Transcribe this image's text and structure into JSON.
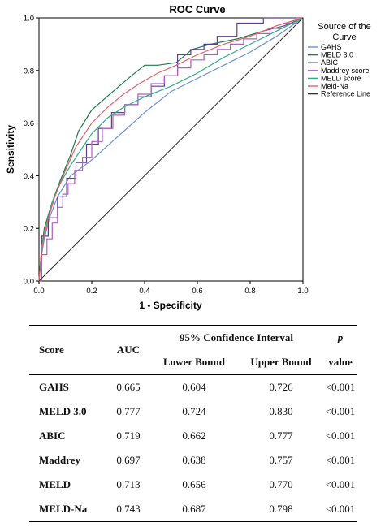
{
  "chart_data": {
    "type": "line",
    "title": "ROC Curve",
    "xlabel": "1 - Specificity",
    "ylabel": "Sensitivity",
    "xlim": [
      0,
      1
    ],
    "ylim": [
      0,
      1
    ],
    "xticks": [
      "0.0",
      "0.2",
      "0.4",
      "0.6",
      "0.8",
      "1.0"
    ],
    "yticks": [
      "0.0",
      "0.2",
      "0.4",
      "0.6",
      "0.8",
      "1.0"
    ],
    "legend": {
      "title_lines": [
        "Source of the",
        "Curve"
      ],
      "position": "right"
    },
    "series": [
      {
        "name": "GAHS",
        "color": "#6b8ed6",
        "x": [
          0,
          0.01,
          0.02,
          0.04,
          0.07,
          0.12,
          0.2,
          0.3,
          0.4,
          0.5,
          0.6,
          0.7,
          0.8,
          0.9,
          1.0
        ],
        "y": [
          0,
          0.1,
          0.16,
          0.24,
          0.32,
          0.4,
          0.46,
          0.55,
          0.64,
          0.72,
          0.77,
          0.82,
          0.87,
          0.93,
          1.0
        ]
      },
      {
        "name": "MELD 3.0",
        "color": "#1f7a4a",
        "x": [
          0,
          0.01,
          0.02,
          0.05,
          0.08,
          0.12,
          0.15,
          0.2,
          0.28,
          0.35,
          0.4,
          0.45,
          0.52,
          0.58,
          0.65,
          0.75,
          0.85,
          0.93,
          1.0
        ],
        "y": [
          0,
          0.12,
          0.2,
          0.3,
          0.38,
          0.48,
          0.57,
          0.65,
          0.72,
          0.78,
          0.82,
          0.82,
          0.83,
          0.88,
          0.9,
          0.92,
          0.95,
          0.97,
          1.0
        ]
      },
      {
        "name": "ABIC",
        "color": "#5a3f8f",
        "x": [
          0,
          0.02,
          0.05,
          0.09,
          0.12,
          0.16,
          0.2,
          0.25,
          0.3,
          0.35,
          0.4,
          0.45,
          0.5,
          0.55,
          0.6,
          0.65,
          0.7,
          0.8,
          0.9,
          1.0
        ],
        "y": [
          0,
          0.17,
          0.24,
          0.32,
          0.39,
          0.45,
          0.52,
          0.58,
          0.64,
          0.67,
          0.7,
          0.74,
          0.78,
          0.86,
          0.88,
          0.9,
          0.93,
          0.98,
          1.0,
          1.0
        ]
      },
      {
        "name": "Maddrey score",
        "color": "#b45cc7",
        "x": [
          0,
          0.02,
          0.04,
          0.06,
          0.08,
          0.1,
          0.12,
          0.15,
          0.18,
          0.22,
          0.26,
          0.3,
          0.35,
          0.4,
          0.45,
          0.5,
          0.55,
          0.6,
          0.65,
          0.7,
          0.75,
          0.8,
          0.85,
          0.9,
          0.95,
          1.0
        ],
        "y": [
          0,
          0.1,
          0.16,
          0.22,
          0.28,
          0.33,
          0.37,
          0.42,
          0.47,
          0.53,
          0.58,
          0.63,
          0.67,
          0.71,
          0.75,
          0.78,
          0.81,
          0.84,
          0.86,
          0.88,
          0.9,
          0.92,
          0.94,
          0.96,
          0.98,
          1.0
        ]
      },
      {
        "name": "MELD score",
        "color": "#2fae83",
        "x": [
          0,
          0.01,
          0.03,
          0.05,
          0.08,
          0.12,
          0.16,
          0.2,
          0.26,
          0.32,
          0.4,
          0.5,
          0.6,
          0.7,
          0.8,
          0.9,
          1.0
        ],
        "y": [
          0,
          0.13,
          0.22,
          0.3,
          0.37,
          0.44,
          0.5,
          0.56,
          0.62,
          0.66,
          0.7,
          0.74,
          0.79,
          0.85,
          0.9,
          0.95,
          1.0
        ]
      },
      {
        "name": "Meld-Na",
        "color": "#e0606a",
        "x": [
          0,
          0.01,
          0.03,
          0.06,
          0.1,
          0.14,
          0.2,
          0.26,
          0.32,
          0.38,
          0.45,
          0.52,
          0.6,
          0.7,
          0.8,
          0.9,
          1.0
        ],
        "y": [
          0,
          0.12,
          0.22,
          0.32,
          0.42,
          0.51,
          0.6,
          0.66,
          0.71,
          0.75,
          0.79,
          0.82,
          0.86,
          0.9,
          0.93,
          0.97,
          1.0
        ]
      },
      {
        "name": "Reference Line",
        "color": "#333333",
        "x": [
          0,
          1
        ],
        "y": [
          0,
          1
        ]
      }
    ]
  },
  "table": {
    "headers": {
      "score": "Score",
      "auc": "AUC",
      "ci": "95% Confidence Interval",
      "lower": "Lower Bound",
      "upper": "Upper Bound",
      "p_symbol": "p",
      "p_value": "value"
    },
    "rows": [
      {
        "score": "GAHS",
        "auc": "0.665",
        "lower": "0.604",
        "upper": "0.726",
        "p": "<0.001"
      },
      {
        "score": "MELD 3.0",
        "auc": "0.777",
        "lower": "0.724",
        "upper": "0.830",
        "p": "<0.001"
      },
      {
        "score": "ABIC",
        "auc": "0.719",
        "lower": "0.662",
        "upper": "0.777",
        "p": "<0.001"
      },
      {
        "score": "Maddrey",
        "auc": "0.697",
        "lower": "0.638",
        "upper": "0.757",
        "p": "<0.001"
      },
      {
        "score": "MELD",
        "auc": "0.713",
        "lower": "0.656",
        "upper": "0.770",
        "p": "<0.001"
      },
      {
        "score": "MELD-Na",
        "auc": "0.743",
        "lower": "0.687",
        "upper": "0.798",
        "p": "<0.001"
      }
    ]
  }
}
